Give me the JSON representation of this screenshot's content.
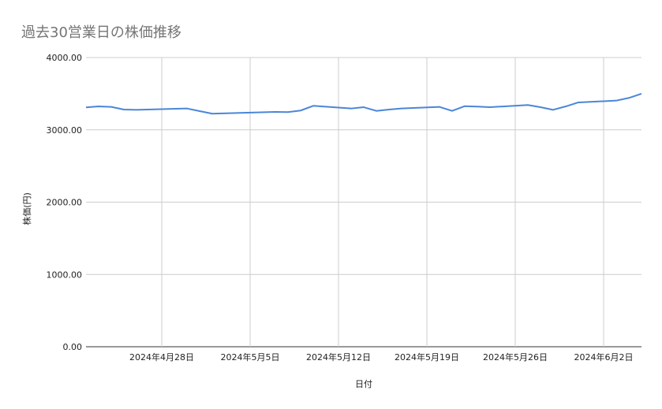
{
  "chart_data": {
    "type": "line",
    "title": "過去30営業日の株価推移",
    "xlabel": "日付",
    "ylabel": "株価(円)",
    "ylim": [
      0,
      4000
    ],
    "xlim": [
      "2024-04-22",
      "2024-06-05"
    ],
    "grid": true,
    "y_ticks": [
      "0.00",
      "1000.00",
      "2000.00",
      "3000.00",
      "4000.00"
    ],
    "x_ticks": [
      {
        "date": "2024-04-28",
        "label": "2024年4月28日"
      },
      {
        "date": "2024-05-05",
        "label": "2024年5月5日"
      },
      {
        "date": "2024-05-12",
        "label": "2024年5月12日"
      },
      {
        "date": "2024-05-19",
        "label": "2024年5月19日"
      },
      {
        "date": "2024-05-26",
        "label": "2024年5月26日"
      },
      {
        "date": "2024-06-02",
        "label": "2024年6月2日"
      }
    ],
    "series": [
      {
        "color": "#4a86d8",
        "x": [
          "2024-04-22",
          "2024-04-23",
          "2024-04-24",
          "2024-04-25",
          "2024-04-26",
          "2024-04-30",
          "2024-05-01",
          "2024-05-02",
          "2024-05-07",
          "2024-05-08",
          "2024-05-09",
          "2024-05-10",
          "2024-05-13",
          "2024-05-14",
          "2024-05-15",
          "2024-05-16",
          "2024-05-17",
          "2024-05-20",
          "2024-05-21",
          "2024-05-22",
          "2024-05-23",
          "2024-05-24",
          "2024-05-27",
          "2024-05-28",
          "2024-05-29",
          "2024-05-30",
          "2024-05-31",
          "2024-06-03",
          "2024-06-04",
          "2024-06-05"
        ],
        "values": [
          3310,
          3324,
          3317,
          3281,
          3277,
          3295,
          3259,
          3223,
          3248,
          3245,
          3267,
          3332,
          3295,
          3313,
          3262,
          3281,
          3295,
          3317,
          3262,
          3327,
          3321,
          3313,
          3343,
          3313,
          3277,
          3324,
          3379,
          3404,
          3441,
          3499
        ]
      }
    ]
  }
}
